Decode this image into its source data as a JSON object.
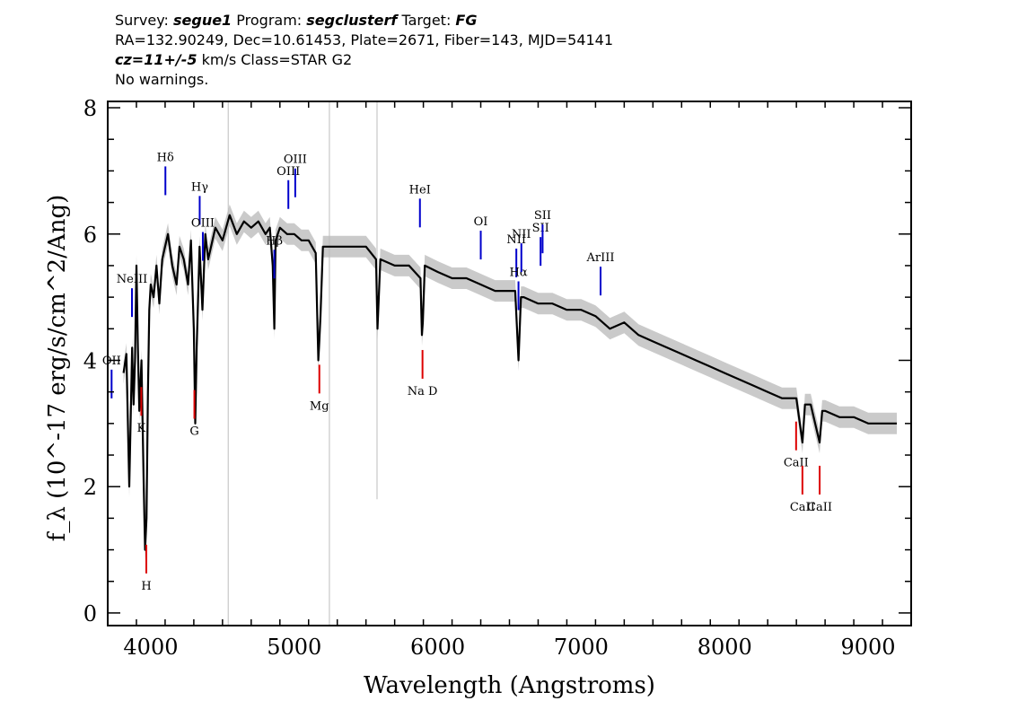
{
  "header": {
    "survey_label": "Survey:",
    "survey": "segue1",
    "program_label": "Program:",
    "program": "segclusterf",
    "target_label": "Target:",
    "target": "FG",
    "line2": "RA=132.90249, Dec=10.61453, Plate=2671, Fiber=143, MJD=54141",
    "cz": "cz=11+/-5",
    "line3_rest": " km/s Class=STAR G2",
    "line4": "No warnings."
  },
  "chart_data": {
    "type": "line",
    "xlabel": "Wavelength (Angstroms)",
    "ylabel": "f_λ (10^-17 erg/s/cm^2/Ang)",
    "xlim": [
      3700,
      9300
    ],
    "ylim": [
      -0.2,
      8.1
    ],
    "x_ticks": [
      4000,
      5000,
      6000,
      7000,
      8000,
      9000
    ],
    "y_ticks": [
      0,
      2,
      4,
      6,
      8
    ],
    "series": [
      {
        "color": "#000000",
        "x": [
          3810,
          3830,
          3850,
          3870,
          3880,
          3890,
          3900,
          3910,
          3920,
          3935,
          3950,
          3960,
          3970,
          3980,
          3990,
          4000,
          4020,
          4040,
          4060,
          4080,
          4100,
          4120,
          4150,
          4180,
          4200,
          4230,
          4260,
          4280,
          4300,
          4310,
          4320,
          4340,
          4360,
          4380,
          4400,
          4450,
          4500,
          4550,
          4600,
          4650,
          4700,
          4750,
          4800,
          4830,
          4850,
          4861,
          4870,
          4900,
          4950,
          5000,
          5050,
          5100,
          5150,
          5168,
          5175,
          5183,
          5200,
          5250,
          5300,
          5400,
          5500,
          5570,
          5580,
          5600,
          5700,
          5800,
          5880,
          5890,
          5896,
          5910,
          6000,
          6100,
          6200,
          6300,
          6400,
          6500,
          6540,
          6563,
          6580,
          6600,
          6700,
          6800,
          6900,
          7000,
          7100,
          7200,
          7300,
          7400,
          7500,
          7600,
          7700,
          7800,
          7900,
          8000,
          8100,
          8200,
          8300,
          8400,
          8500,
          8542,
          8560,
          8600,
          8662,
          8680,
          8700,
          8800,
          8900,
          9000,
          9100,
          9200
        ],
        "y": [
          3.8,
          4.1,
          2.0,
          4.2,
          3.3,
          4.0,
          5.5,
          4.2,
          3.2,
          4.0,
          2.1,
          1.0,
          1.5,
          3.5,
          4.8,
          5.2,
          5.0,
          5.5,
          4.9,
          5.6,
          5.8,
          6.0,
          5.5,
          5.2,
          5.8,
          5.6,
          5.2,
          5.9,
          4.5,
          3.0,
          4.2,
          5.8,
          4.8,
          6.0,
          5.6,
          6.1,
          5.9,
          6.3,
          6.0,
          6.2,
          6.1,
          6.2,
          6.0,
          6.1,
          5.5,
          4.5,
          5.9,
          6.1,
          6.0,
          6.0,
          5.9,
          5.9,
          5.7,
          4.0,
          4.3,
          4.7,
          5.8,
          5.8,
          5.8,
          5.8,
          5.8,
          5.6,
          4.5,
          5.6,
          5.5,
          5.5,
          5.3,
          4.4,
          4.6,
          5.5,
          5.4,
          5.3,
          5.3,
          5.2,
          5.1,
          5.1,
          5.1,
          4.0,
          5.0,
          5.0,
          4.9,
          4.9,
          4.8,
          4.8,
          4.7,
          4.5,
          4.6,
          4.4,
          4.3,
          4.2,
          4.1,
          4.0,
          3.9,
          3.8,
          3.7,
          3.6,
          3.5,
          3.4,
          3.4,
          2.7,
          3.3,
          3.3,
          2.7,
          3.2,
          3.2,
          3.1,
          3.1,
          3.0,
          3.0,
          3.0
        ]
      }
    ],
    "emission_lines": [
      {
        "label": "OII",
        "x": 3727
      },
      {
        "label": "NeIII",
        "x": 3869
      },
      {
        "label": "Hδ",
        "x": 4102
      },
      {
        "label": "Hγ",
        "x": 4341
      },
      {
        "label": "OIII",
        "x": 4363
      },
      {
        "label": "Hβ",
        "x": 4861
      },
      {
        "label": "OIII",
        "x": 4959
      },
      {
        "label": "OIII",
        "x": 5007
      },
      {
        "label": "HeI",
        "x": 5876
      },
      {
        "label": "OI",
        "x": 6300
      },
      {
        "label": "NII",
        "x": 6548
      },
      {
        "label": "Hα",
        "x": 6563
      },
      {
        "label": "NII",
        "x": 6583
      },
      {
        "label": "SII",
        "x": 6717
      },
      {
        "label": "SII",
        "x": 6731
      },
      {
        "label": "ArIII",
        "x": 7135
      }
    ],
    "absorption_lines": [
      {
        "label": "K",
        "x": 3934
      },
      {
        "label": "H",
        "x": 3969
      },
      {
        "label": "G",
        "x": 4304
      },
      {
        "label": "Mg",
        "x": 5175
      },
      {
        "label": "Na D",
        "x": 5894
      },
      {
        "label": "CaII",
        "x": 8498
      },
      {
        "label": "CaII",
        "x": 8542
      },
      {
        "label": "CaII",
        "x": 8662
      }
    ],
    "colors": {
      "spectrum": "#000000",
      "noise_band": "#bdbdbd",
      "emission": "#0000cc",
      "absorption": "#dd0000",
      "grid": "#c8c8c8"
    }
  }
}
